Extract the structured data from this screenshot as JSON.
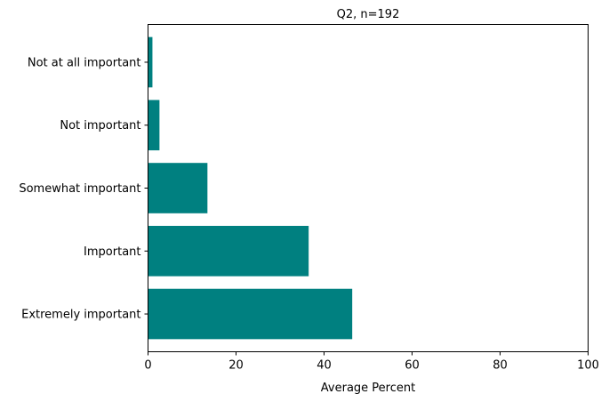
{
  "chart_data": {
    "type": "bar",
    "orientation": "horizontal",
    "title": "Q2, n=192",
    "xlabel": "Average Percent",
    "ylabel": "",
    "categories": [
      "Extremely important",
      "Important",
      "Somewhat important",
      "Not important",
      "Not at all important"
    ],
    "values": [
      46.4,
      36.5,
      13.5,
      2.6,
      1.0
    ],
    "xlim": [
      0,
      100
    ],
    "xticks": [
      0,
      20,
      40,
      60,
      80,
      100
    ],
    "grid": false,
    "legend": "none",
    "bar_color": "#008080"
  }
}
